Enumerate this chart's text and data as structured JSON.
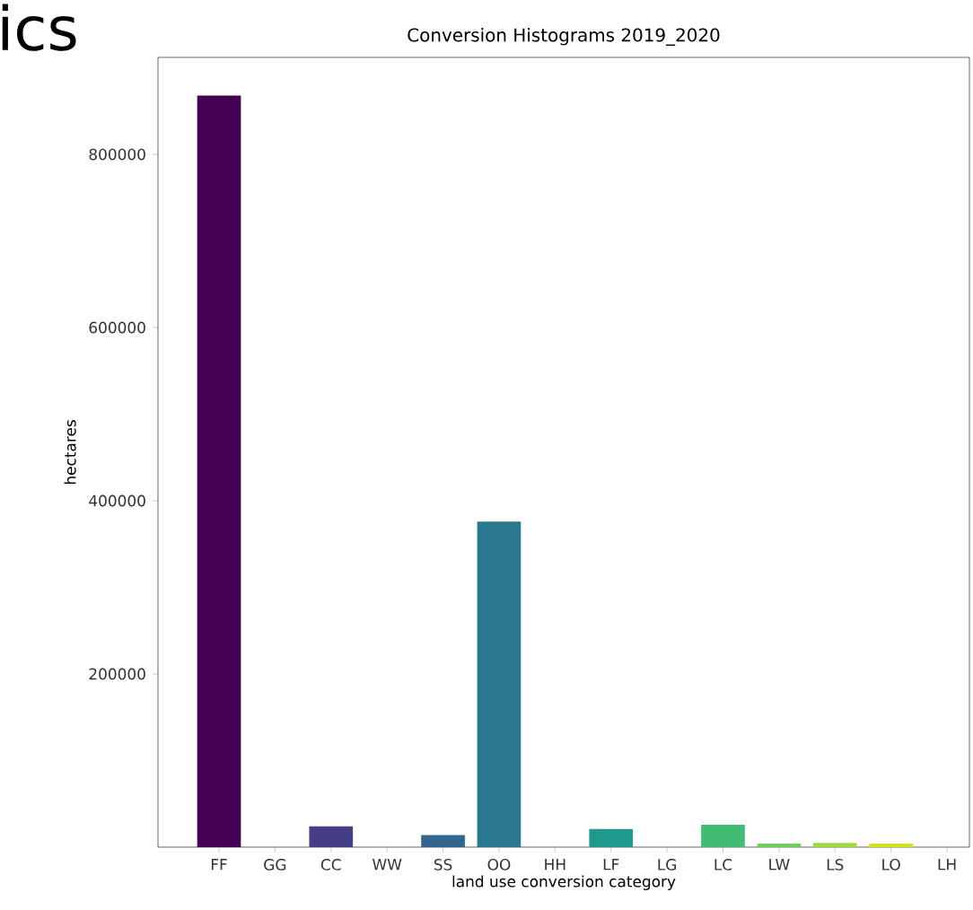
{
  "chart_data": {
    "type": "bar",
    "title": "Conversion Histograms 2019_2020",
    "xlabel": "land use conversion category",
    "ylabel": "hectares",
    "annotations": [
      "ics"
    ],
    "categories": [
      "FF",
      "GG",
      "CC",
      "WW",
      "SS",
      "OO",
      "HH",
      "LF",
      "LG",
      "LC",
      "LW",
      "LS",
      "LO",
      "LH"
    ],
    "values": [
      868000,
      0,
      24000,
      0,
      14000,
      376000,
      0,
      21000,
      0,
      26000,
      4000,
      5000,
      4000,
      0
    ],
    "colors": [
      "#440154",
      "#482173",
      "#433e85",
      "#3b518b",
      "#31658e",
      "#2a788e",
      "#238a8d",
      "#1f9a8a",
      "#2aac82",
      "#40bd72",
      "#6ece58",
      "#9dd93b",
      "#d2e21b",
      "#fde725"
    ],
    "ylim": [
      0,
      912000
    ],
    "yticks": [
      200000,
      400000,
      600000,
      800000
    ]
  }
}
